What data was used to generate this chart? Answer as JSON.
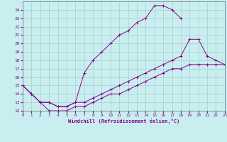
{
  "xlabel": "Windchill (Refroidissement éolien,°C)",
  "xlim": [
    0,
    23
  ],
  "ylim": [
    12,
    25
  ],
  "xticks": [
    0,
    1,
    2,
    3,
    4,
    5,
    6,
    7,
    8,
    9,
    10,
    11,
    12,
    13,
    14,
    15,
    16,
    17,
    18,
    19,
    20,
    21,
    22,
    23
  ],
  "yticks": [
    12,
    13,
    14,
    15,
    16,
    17,
    18,
    19,
    20,
    21,
    22,
    23,
    24
  ],
  "bg_color": "#c8eef0",
  "grid_color": "#aacccc",
  "line_color": "#880088",
  "line1_x": [
    0,
    1,
    2,
    3,
    4,
    5,
    6,
    7,
    8,
    9,
    10,
    11,
    12,
    13,
    14,
    15,
    16,
    17,
    18
  ],
  "line1_y": [
    15,
    14,
    13,
    13,
    12.5,
    12.5,
    13,
    16.5,
    18,
    19,
    20,
    21,
    21.5,
    22.5,
    23,
    24.5,
    24.5,
    24,
    23
  ],
  "line2_x": [
    0,
    1,
    2,
    3,
    4,
    5,
    6,
    7,
    8,
    9,
    10,
    11,
    12,
    13,
    14,
    15,
    16,
    17,
    18,
    19,
    20,
    21,
    22,
    23
  ],
  "line2_y": [
    15,
    14,
    13,
    13,
    12.5,
    12.5,
    13,
    13,
    13.5,
    14,
    14.5,
    15,
    15.5,
    16,
    16.5,
    17,
    17.5,
    18,
    18.5,
    20.5,
    20.5,
    18.5,
    18,
    17.5
  ],
  "line3_x": [
    0,
    1,
    2,
    3,
    4,
    5,
    6,
    7,
    8,
    9,
    10,
    11,
    12,
    13,
    14,
    15,
    16,
    17,
    18,
    19,
    20,
    21,
    22,
    23
  ],
  "line3_y": [
    15,
    14,
    13,
    12,
    12,
    12,
    12.5,
    12.5,
    13,
    13.5,
    14,
    14,
    14.5,
    15,
    15.5,
    16,
    16.5,
    17,
    17,
    17.5,
    17.5,
    17.5,
    17.5,
    17.5
  ]
}
